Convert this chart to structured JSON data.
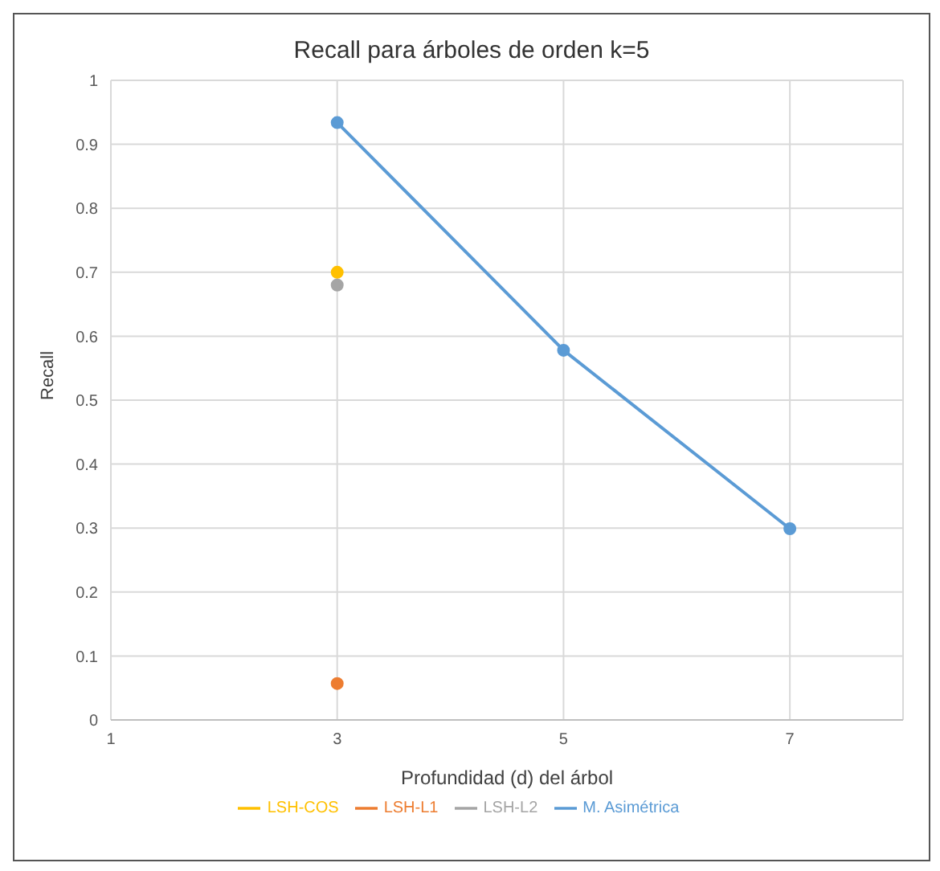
{
  "chart_data": {
    "type": "line",
    "title": "Recall para árboles de orden k=5",
    "xlabel": "Profundidad  (d) del árbol",
    "ylabel": "Recall",
    "series": [
      {
        "name": "M. Asimétrica",
        "color": "#5b9bd5",
        "x": [
          3,
          5,
          7
        ],
        "values": [
          0.934,
          0.578,
          0.299
        ]
      },
      {
        "name": "LSH-L1",
        "color": "#ed7d31",
        "x": [
          3
        ],
        "values": [
          0.057
        ]
      },
      {
        "name": "LSH-L2",
        "color": "#a5a5a5",
        "x": [
          3
        ],
        "values": [
          0.68
        ]
      },
      {
        "name": "LSH-COS",
        "color": "#ffc000",
        "x": [
          3
        ],
        "values": [
          0.7
        ]
      }
    ],
    "xlim": [
      1,
      8
    ],
    "xticks": [
      1,
      3,
      5,
      7
    ],
    "ylim": [
      0,
      1
    ],
    "yticks": [
      0,
      0.1,
      0.2,
      0.3,
      0.4,
      0.5,
      0.6,
      0.7,
      0.8,
      0.9,
      1
    ],
    "grid": true,
    "legend": "bottom",
    "marker": "circle",
    "line_style": "solid"
  }
}
